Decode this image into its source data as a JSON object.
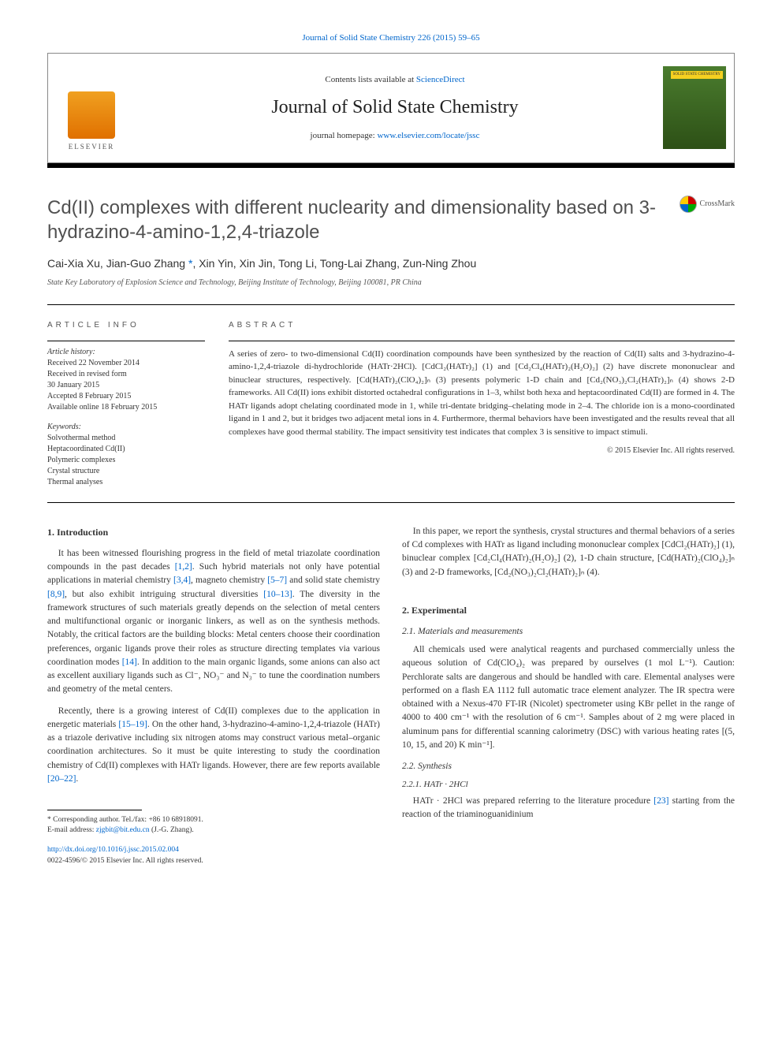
{
  "top_link": {
    "text": "Journal of Solid State Chemistry 226 (2015) 59–65",
    "url_color": "#0066cc"
  },
  "header": {
    "contents_prefix": "Contents lists available at ",
    "contents_link": "ScienceDirect",
    "journal_name": "Journal of Solid State Chemistry",
    "homepage_prefix": "journal homepage: ",
    "homepage_link": "www.elsevier.com/locate/jssc",
    "elsevier_label": "ELSEVIER",
    "cover_text": "SOLID STATE CHEMISTRY"
  },
  "article": {
    "title": "Cd(II) complexes with different nuclearity and dimensionality based on 3-hydrazino-4-amino-1,2,4-triazole",
    "crossmark_label": "CrossMark",
    "authors_html": "Cai-Xia Xu, Jian-Guo Zhang <span class='corr'>*</span>, Xin Yin, Xin Jin, Tong Li, Tong-Lai Zhang, Zun-Ning Zhou",
    "affiliation": "State Key Laboratory of Explosion Science and Technology, Beijing Institute of Technology, Beijing 100081, PR China"
  },
  "info": {
    "heading": "ARTICLE INFO",
    "history_label": "Article history:",
    "history": [
      "Received 22 November 2014",
      "Received in revised form",
      "30 January 2015",
      "Accepted 8 February 2015",
      "Available online 18 February 2015"
    ],
    "keywords_label": "Keywords:",
    "keywords": [
      "Solvothermal method",
      "Heptacoordinated Cd(II)",
      "Polymeric complexes",
      "Crystal structure",
      "Thermal analyses"
    ]
  },
  "abstract": {
    "heading": "ABSTRACT",
    "text": "A series of zero- to two-dimensional Cd(II) coordination compounds have been synthesized by the reaction of Cd(II) salts and 3-hydrazino-4-amino-1,2,4-triazole di-hydrochloride (HATr·2HCl). [CdCl₂(HATr)₂] (1) and [Cd₂Cl₄(HATr)₂(H₂O)₂] (2) have discrete mononuclear and binuclear structures, respectively. [Cd(HATr)₂(ClO₄)₂]ₙ (3) presents polymeric 1-D chain and [Cd₂(NO₃)₂Cl₂(HATr)₂]ₙ (4) shows 2-D frameworks. All Cd(II) ions exhibit distorted octahedral configurations in 1–3, whilst both hexa and heptacoordinated Cd(II) are formed in 4. The HATr ligands adopt chelating coordinated mode in 1, while tri-dentate bridging–chelating mode in 2–4. The chloride ion is a mono-coordinated ligand in 1 and 2, but it bridges two adjacent metal ions in 4. Furthermore, thermal behaviors have been investigated and the results reveal that all complexes have good thermal stability. The impact sensitivity test indicates that complex 3 is sensitive to impact stimuli.",
    "copyright": "© 2015 Elsevier Inc. All rights reserved."
  },
  "body": {
    "left": {
      "section1_heading": "1. Introduction",
      "p1": "It has been witnessed flourishing progress in the field of metal triazolate coordination compounds in the past decades [1,2]. Such hybrid materials not only have potential applications in material chemistry [3,4], magneto chemistry [5–7] and solid state chemistry [8,9], but also exhibit intriguing structural diversities [10–13]. The diversity in the framework structures of such materials greatly depends on the selection of metal centers and multifunctional organic or inorganic linkers, as well as on the synthesis methods. Notably, the critical factors are the building blocks: Metal centers choose their coordination preferences, organic ligands prove their roles as structure directing templates via various coordination modes [14]. In addition to the main organic ligands, some anions can also act as excellent auxiliary ligands such as Cl⁻, NO₃⁻ and N₃⁻ to tune the coordination numbers and geometry of the metal centers.",
      "p2": "Recently, there is a growing interest of Cd(II) complexes due to the application in energetic materials [15–19]. On the other hand, 3-hydrazino-4-amino-1,2,4-triazole (HATr) as a triazole derivative including six nitrogen atoms may construct various metal–organic coordination architectures. So it must be quite interesting to study the coordination chemistry of Cd(II) complexes with HATr ligands. However, there are few reports available [20–22].",
      "refs": {
        "r1": "[1,2]",
        "r2": "[3,4]",
        "r3": "[5–7]",
        "r4": "[8,9]",
        "r5": "[10–13]",
        "r6": "[14]",
        "r7": "[15–19]",
        "r8": "[20–22]"
      }
    },
    "right": {
      "p1": "In this paper, we report the synthesis, crystal structures and thermal behaviors of a series of Cd complexes with HATr as ligand including mononuclear complex [CdCl₂(HATr)₂] (1), binuclear complex [Cd₂Cl₄(HATr)₂(H₂O)₂] (2), 1-D chain structure, [Cd(HATr)₂(ClO₄)₂]ₙ (3) and 2-D frameworks, [Cd₂(NO₃)₂Cl₂(HATr)₂]ₙ (4).",
      "section2_heading": "2. Experimental",
      "sub21_heading": "2.1. Materials and measurements",
      "p2": "All chemicals used were analytical reagents and purchased commercially unless the aqueous solution of Cd(ClO₄)₂ was prepared by ourselves (1 mol L⁻¹). Caution: Perchlorate salts are dangerous and should be handled with care. Elemental analyses were performed on a flash EA 1112 full automatic trace element analyzer. The IR spectra were obtained with a Nexus-470 FT-IR (Nicolet) spectrometer using KBr pellet in the range of 4000 to 400 cm⁻¹ with the resolution of 6 cm⁻¹. Samples about of 2 mg were placed in aluminum pans for differential scanning calorimetry (DSC) with various heating rates [(5, 10, 15, and 20) K min⁻¹].",
      "sub22_heading": "2.2. Synthesis",
      "sub221_heading": "2.2.1. HATr · 2HCl",
      "p3": "HATr · 2HCl was prepared referring to the literature procedure [23] starting from the reaction of the triaminoguanidinium",
      "refs": {
        "r9": "[23]"
      }
    }
  },
  "footnote": {
    "corr_label": "* Corresponding author. Tel./fax: +86 10 68918091.",
    "email_label": "E-mail address: ",
    "email": "zjgbit@bit.edu.cn",
    "email_suffix": " (J.-G. Zhang)."
  },
  "doi": {
    "link": "http://dx.doi.org/10.1016/j.jssc.2015.02.004",
    "issn_line": "0022-4596/© 2015 Elsevier Inc. All rights reserved."
  },
  "colors": {
    "link": "#0066cc",
    "text": "#333333",
    "heading_gray": "#505050"
  }
}
